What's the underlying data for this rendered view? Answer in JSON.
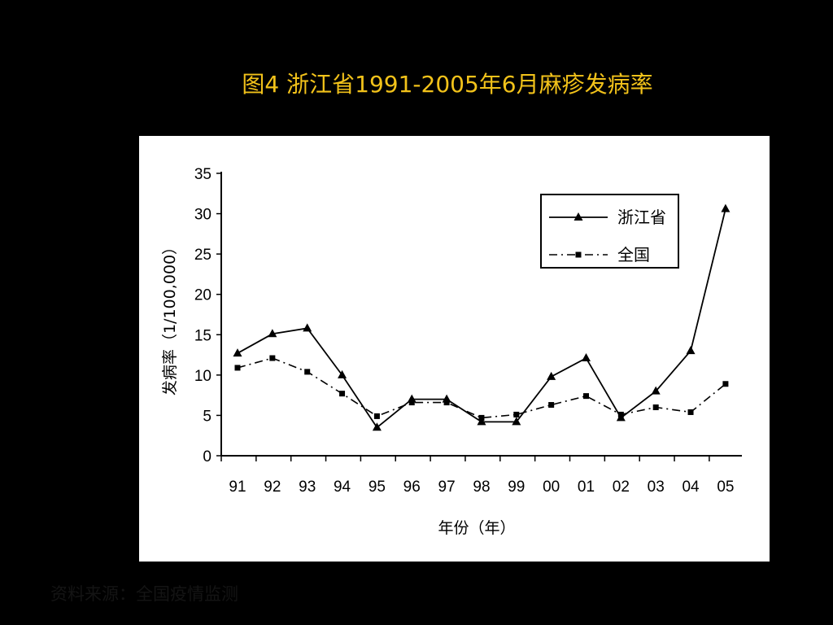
{
  "title": "图4 浙江省1991-2005年6月麻疹发病率",
  "source_note": "资料来源：全国疫情监测",
  "colors": {
    "background": "#000000",
    "title": "#f2c21a",
    "panel": "#ffffff",
    "lines": "#000000"
  },
  "chart_data": {
    "type": "line",
    "title": "",
    "xlabel": "年份（年）",
    "ylabel": "发病率（1/100,000）",
    "categories": [
      "91",
      "92",
      "93",
      "94",
      "95",
      "96",
      "97",
      "98",
      "99",
      "00",
      "01",
      "02",
      "03",
      "04",
      "05"
    ],
    "ylim": [
      0,
      35
    ],
    "yticks": [
      "0",
      "5",
      "10",
      "15",
      "20",
      "25",
      "30",
      "35"
    ],
    "grid": false,
    "legend_position": "top-right",
    "series": [
      {
        "name": "浙江省",
        "style": "solid",
        "marker": "triangle",
        "values": [
          12.7,
          15.1,
          15.8,
          10.0,
          3.5,
          7.0,
          7.0,
          4.2,
          4.2,
          9.8,
          12.1,
          4.7,
          8.0,
          13.0,
          30.6
        ]
      },
      {
        "name": "全国",
        "style": "dash-dot",
        "marker": "square",
        "values": [
          10.9,
          12.1,
          10.4,
          7.7,
          4.9,
          6.6,
          6.6,
          4.7,
          5.1,
          6.3,
          7.4,
          5.1,
          6.0,
          5.4,
          8.9
        ]
      }
    ]
  }
}
